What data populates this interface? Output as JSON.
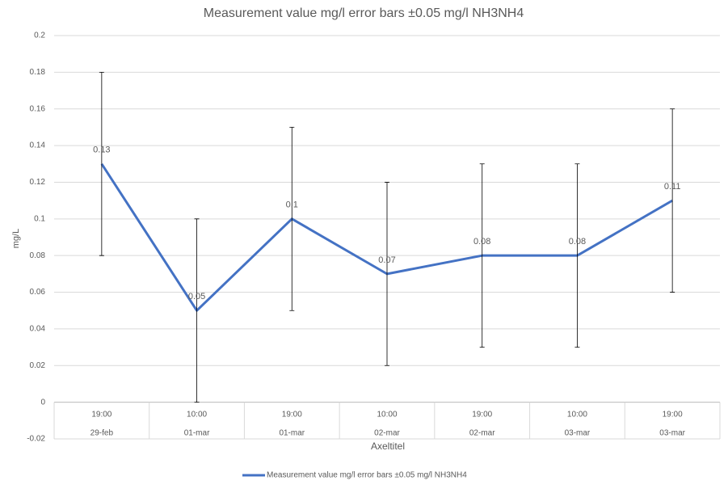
{
  "chart_data": {
    "type": "line",
    "title": "Measurement value mg/l error bars ±0.05 mg/l NH3NH4",
    "x_label": "Axeltitel",
    "y_label": "mg/L",
    "categories": [
      {
        "time": "19:00",
        "date": "29-feb"
      },
      {
        "time": "10:00",
        "date": "01-mar"
      },
      {
        "time": "19:00",
        "date": "01-mar"
      },
      {
        "time": "10:00",
        "date": "02-mar"
      },
      {
        "time": "19:00",
        "date": "02-mar"
      },
      {
        "time": "10:00",
        "date": "03-mar"
      },
      {
        "time": "19:00",
        "date": "03-mar"
      }
    ],
    "series": [
      {
        "name": "Measurement value mg/l error bars ±0.05 mg/l NH3NH4",
        "color": "#4472c4",
        "values": [
          0.13,
          0.05,
          0.1,
          0.07,
          0.08,
          0.08,
          0.11
        ],
        "errors": [
          0.05,
          0.05,
          0.05,
          0.05,
          0.05,
          0.05,
          0.05
        ]
      }
    ],
    "ylim": [
      -0.02,
      0.2
    ],
    "yticks": [
      -0.02,
      0,
      0.02,
      0.04,
      0.06,
      0.08,
      0.1,
      0.12,
      0.14,
      0.16,
      0.18,
      0.2
    ],
    "grid": true,
    "legend": "bottom"
  }
}
